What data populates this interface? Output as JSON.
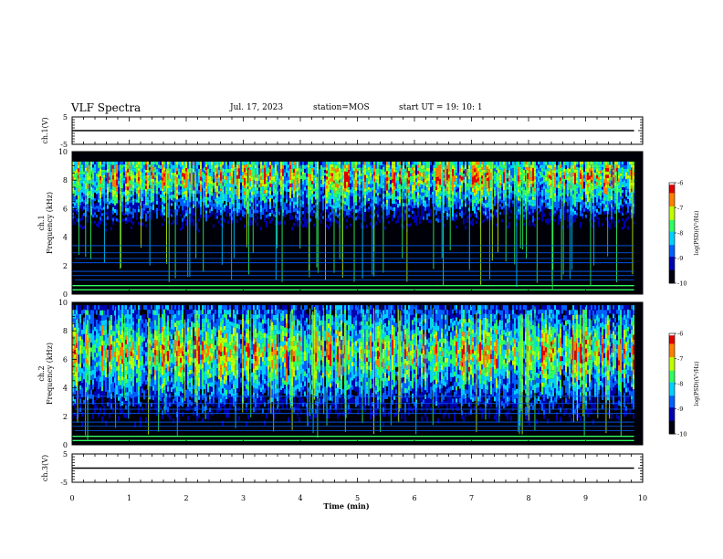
{
  "header": {
    "title": "VLF Spectra",
    "date": "Jul. 17, 2023",
    "station": "station=MOS",
    "start": "start UT =   19: 10: 1"
  },
  "chart_data": [
    {
      "type": "line",
      "title": "",
      "ylabel": "ch.1(V)",
      "yticks": [
        "5",
        "-5"
      ],
      "ylim": [
        -5,
        5
      ],
      "xlim": [
        0,
        10
      ],
      "series": [
        {
          "x": [
            0,
            9.85
          ],
          "y": [
            0,
            0
          ]
        }
      ]
    },
    {
      "type": "heatmap",
      "ylabel_line1": "ch.1",
      "ylabel_line2": "Frequency (kHz)",
      "yticks": [
        "0",
        "2",
        "4",
        "6",
        "8",
        "10"
      ],
      "ylim": [
        0,
        10
      ],
      "xlim": [
        0,
        10
      ],
      "data_xmax": 9.85,
      "colorbar": {
        "label": "log(PSD)(V²/Hz)",
        "ticks": [
          "-6",
          "-7",
          "-8",
          "-9",
          "-10"
        ],
        "range": [
          -10,
          -6
        ]
      },
      "noise_band_khz": [
        4.5,
        9.3
      ],
      "band_center_khz": 8.2
    },
    {
      "type": "heatmap",
      "ylabel_line1": "ch.2",
      "ylabel_line2": "Frequency (kHz)",
      "yticks": [
        "0",
        "2",
        "4",
        "6",
        "8",
        "10"
      ],
      "ylim": [
        0,
        10
      ],
      "xlim": [
        0,
        10
      ],
      "data_xmax": 9.85,
      "colorbar": {
        "label": "log(PSD)(V²/Hz)",
        "ticks": [
          "-6",
          "-7",
          "-8",
          "-9",
          "-10"
        ],
        "range": [
          -10,
          -6
        ]
      },
      "noise_band_khz": [
        2.5,
        9.8
      ],
      "band_center_khz": 6.5
    },
    {
      "type": "line",
      "ylabel": "ch.3(V)",
      "yticks": [
        "5",
        "-5"
      ],
      "ylim": [
        -5,
        5
      ],
      "xlim": [
        0,
        10
      ],
      "xlabel": "Time (min)",
      "xticks": [
        "0",
        "1",
        "2",
        "3",
        "4",
        "5",
        "6",
        "7",
        "8",
        "9",
        "10"
      ],
      "series": [
        {
          "x": [
            0,
            9.85
          ],
          "y": [
            0,
            0
          ]
        }
      ]
    }
  ],
  "colors": {
    "colormap": [
      "#000010",
      "#0000b0",
      "#0060ff",
      "#00d0ff",
      "#30ff60",
      "#c0ff00",
      "#ff8000",
      "#e00000",
      "#ffffff"
    ]
  }
}
